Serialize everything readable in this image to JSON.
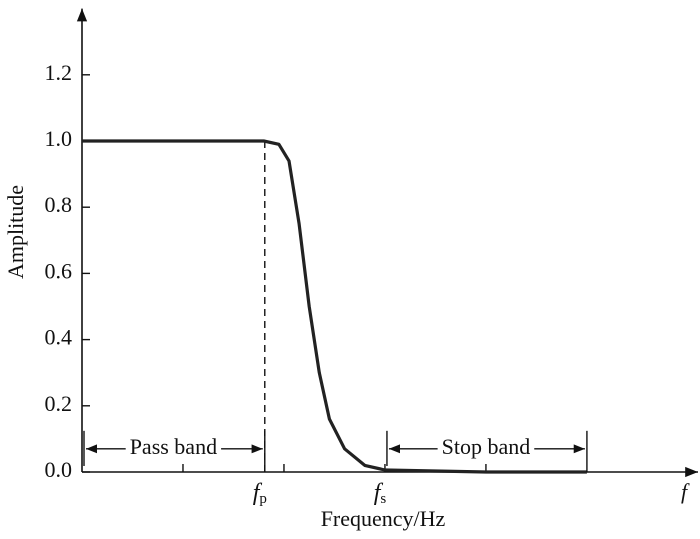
{
  "chart_data": {
    "type": "line",
    "y_label": "Amplitude",
    "x_label": "Frequency/Hz",
    "x_axis_symbol": "f",
    "x": [
      0,
      1.8,
      1.95,
      2.05,
      2.15,
      2.25,
      2.35,
      2.45,
      2.6,
      2.8,
      3.0,
      4.0,
      5.0
    ],
    "series": [
      {
        "color": "#222222",
        "values": [
          1.0,
          1.0,
          0.99,
          0.94,
          0.75,
          0.5,
          0.3,
          0.16,
          0.07,
          0.02,
          0.006,
          0,
          0
        ]
      }
    ],
    "xlim": [
      0,
      6.1
    ],
    "xticks": [
      1,
      2,
      3,
      4
    ],
    "ylim": [
      0,
      1.4
    ],
    "yticks": [
      {
        "value": 0,
        "label": "0.0"
      },
      0.2,
      0.4,
      0.6,
      0.8,
      {
        "value": 1,
        "label": "1.0"
      },
      1.2
    ],
    "markers": [
      {
        "symbol": "f",
        "sub": "p",
        "x": 1.81
      },
      {
        "symbol": "f",
        "sub": "s",
        "x": 3.0
      }
    ],
    "cutoff_line": {
      "x": 1.81,
      "y": 1.0
    },
    "bands": [
      {
        "label": "Pass band",
        "x": [
          0,
          1.81
        ]
      },
      {
        "label": "Stop band",
        "x": [
          3.0,
          5.0
        ]
      }
    ],
    "band_y": 0.07
  }
}
